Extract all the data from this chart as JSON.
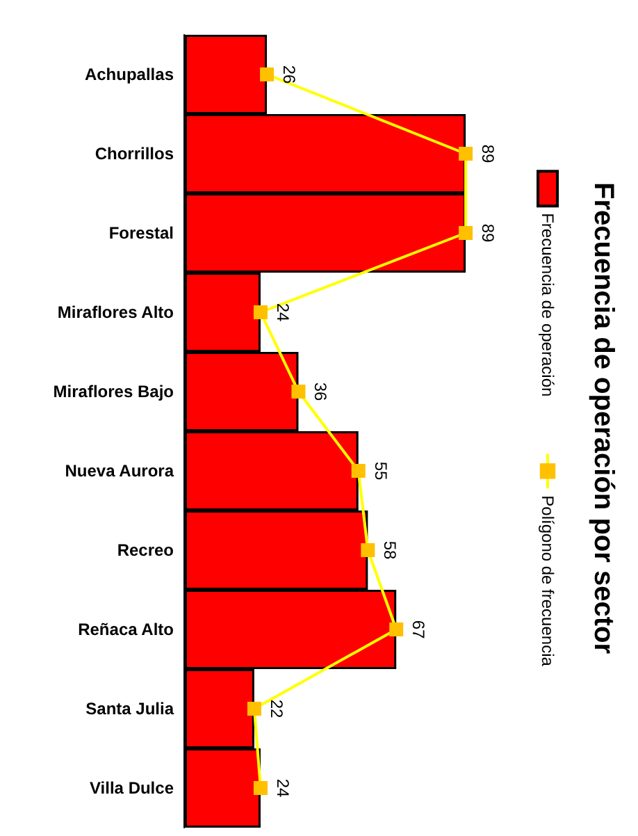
{
  "chart_data": {
    "type": "bar",
    "orientation": "horizontal",
    "title": "Frecuencia de operación por sector",
    "categories": [
      "Achupallas",
      "Chorrillos",
      "Forestal",
      "Miraflores Alto",
      "Miraflores Bajo",
      "Nueva Aurora",
      "Recreo",
      "Reñaca Alto",
      "Santa Julia",
      "Villa Dulce"
    ],
    "series": [
      {
        "name": "Frecuencia de operación",
        "color": "#ff0000",
        "values": [
          26,
          89,
          89,
          24,
          36,
          55,
          58,
          67,
          22,
          24
        ]
      },
      {
        "name": "Polígono de frecuencia",
        "type": "line",
        "color": "#ffff00",
        "values": [
          26,
          89,
          89,
          24,
          36,
          55,
          58,
          67,
          22,
          24
        ],
        "value_labels": [
          "26",
          "89",
          "89",
          "24",
          "36",
          "55",
          "58",
          "67",
          "22",
          "24"
        ]
      }
    ],
    "marker": "square",
    "legend": "right",
    "grid": false
  }
}
